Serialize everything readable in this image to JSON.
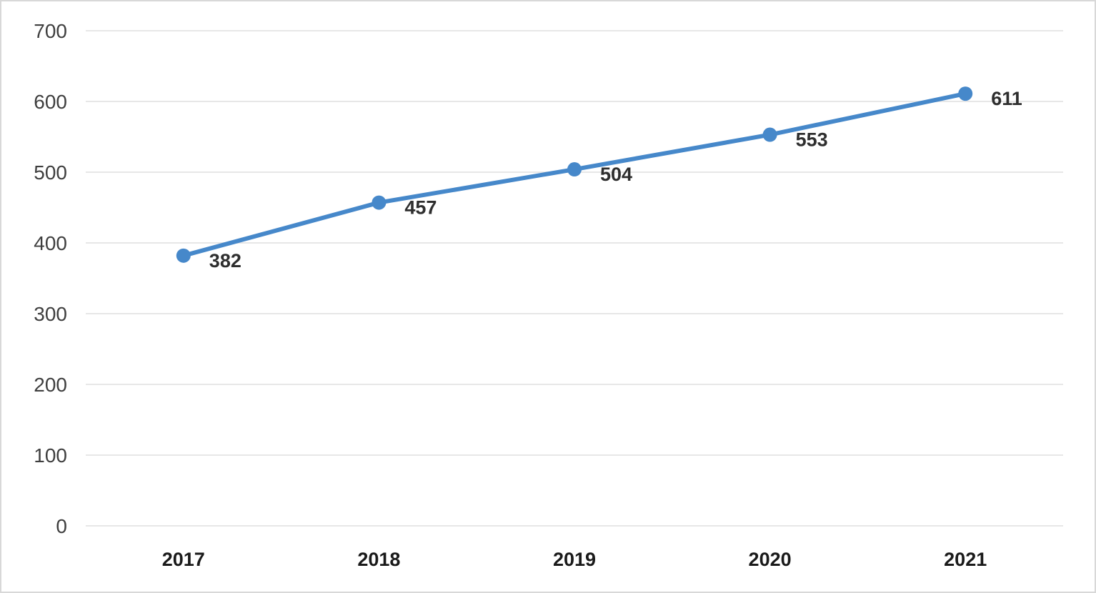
{
  "chart_data": {
    "type": "line",
    "title": "",
    "xlabel": "",
    "ylabel": "",
    "categories": [
      "2017",
      "2018",
      "2019",
      "2020",
      "2021"
    ],
    "values": [
      382,
      457,
      504,
      553,
      611
    ],
    "data_labels": [
      "382",
      "457",
      "504",
      "553",
      "611"
    ],
    "yticks": [
      0,
      100,
      200,
      300,
      400,
      500,
      600,
      700
    ],
    "ylim": [
      0,
      700
    ],
    "grid": "horizontal",
    "legend": "none",
    "line_color": "#4688ca",
    "marker": "circle",
    "gridline_color": "#e7e7e7",
    "axis_text_color": "#3f3f3f",
    "data_label_color": "#2e2e2e",
    "frame_border_color": "#d8d8d8"
  }
}
